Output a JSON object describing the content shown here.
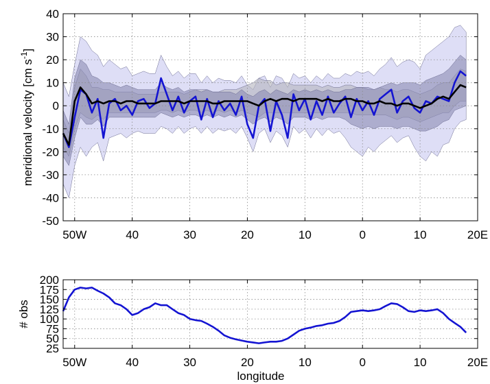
{
  "chart_data": [
    {
      "type": "line",
      "ylabel": "meridional velocity [cm s",
      "ylabel_sup": "-1",
      "ylabel_close": "]",
      "xlabel": "",
      "xlim": [
        -52,
        20
      ],
      "ylim": [
        -50,
        40
      ],
      "yticks": [
        -50,
        -40,
        -30,
        -20,
        -10,
        0,
        10,
        20,
        30,
        40
      ],
      "ytick_labels": [
        "-50",
        "-40",
        "-30",
        "-20",
        "-10",
        "0",
        "10",
        "20",
        "30",
        "40"
      ],
      "xticks": [
        -50,
        -40,
        -30,
        -20,
        -10,
        0,
        10,
        20
      ],
      "xtick_labels": [
        "50W",
        "40",
        "30",
        "20",
        "10",
        "0",
        "10",
        "20E"
      ],
      "grid": true,
      "colors": {
        "blue_line": "#1414d2",
        "black_line": "#000000",
        "outer_band": "#c8c8f0",
        "gray_band": "#b4b4be",
        "inner_band": "#8c8cb4"
      },
      "x": [
        -52,
        -51,
        -50,
        -49,
        -48,
        -47,
        -46,
        -45,
        -44,
        -43,
        -42,
        -41,
        -40,
        -39,
        -38,
        -37,
        -36,
        -35,
        -34,
        -33,
        -32,
        -31,
        -30,
        -29,
        -28,
        -27,
        -26,
        -25,
        -24,
        -23,
        -22,
        -21,
        -20,
        -19,
        -18,
        -17,
        -16,
        -15,
        -14,
        -13,
        -12,
        -11,
        -10,
        -9,
        -8,
        -7,
        -6,
        -5,
        -4,
        -3,
        -2,
        -1,
        0,
        1,
        2,
        3,
        4,
        5,
        6,
        7,
        8,
        9,
        10,
        11,
        12,
        13,
        14,
        15,
        16,
        17,
        18
      ],
      "series": [
        {
          "kind": "line",
          "color": "#1414d2",
          "values": [
            -12,
            -18,
            -5,
            7,
            5,
            -3,
            3,
            -14,
            1,
            3,
            -2,
            0,
            -4,
            2,
            3,
            -1,
            1,
            12,
            5,
            -2,
            4,
            -3,
            2,
            4,
            -6,
            3,
            -5,
            2,
            -2,
            1,
            -4,
            4,
            -8,
            -14,
            0,
            3,
            -11,
            2,
            -4,
            -14,
            5,
            -2,
            3,
            -6,
            2,
            -4,
            4,
            -3,
            1,
            4,
            -5,
            3,
            -2,
            2,
            -4,
            3,
            5,
            7,
            -3,
            2,
            4,
            -1,
            -3,
            2,
            1,
            4,
            3,
            2,
            10,
            15,
            13
          ]
        },
        {
          "kind": "line",
          "color": "#000000",
          "values": [
            -12,
            -17,
            2,
            8,
            5,
            1,
            2,
            1,
            2,
            2,
            1,
            2,
            2,
            1,
            1,
            1,
            1,
            2,
            2,
            2,
            2,
            1,
            2,
            2,
            2,
            2,
            1,
            1,
            2,
            2,
            2,
            2,
            2,
            1,
            0,
            2,
            3,
            2,
            3,
            3,
            2,
            3,
            3,
            3,
            3,
            2,
            3,
            2,
            2,
            3,
            3,
            2,
            2,
            1,
            1,
            2,
            1,
            1,
            0,
            1,
            1,
            0,
            -1,
            0,
            1,
            3,
            4,
            3,
            6,
            9,
            8
          ]
        },
        {
          "kind": "band",
          "color": "#c8c8f0",
          "lower": [
            -34,
            -40,
            -26,
            -18,
            -22,
            -18,
            -16,
            -24,
            -14,
            -13,
            -12,
            -14,
            -12,
            -11,
            -12,
            -12,
            -12,
            -9,
            -10,
            -12,
            -9,
            -12,
            -10,
            -9,
            -12,
            -9,
            -12,
            -10,
            -11,
            -10,
            -12,
            -9,
            -14,
            -20,
            -12,
            -10,
            -16,
            -11,
            -13,
            -18,
            -9,
            -12,
            -10,
            -14,
            -10,
            -13,
            -10,
            -12,
            -11,
            -14,
            -18,
            -20,
            -22,
            -18,
            -20,
            -17,
            -15,
            -13,
            -16,
            -14,
            -13,
            -18,
            -22,
            -24,
            -20,
            -22,
            -17,
            -16,
            -10,
            -7,
            -6
          ],
          "upper": [
            10,
            4,
            18,
            30,
            28,
            24,
            22,
            17,
            20,
            18,
            16,
            17,
            13,
            14,
            15,
            14,
            14,
            22,
            17,
            13,
            15,
            12,
            14,
            14,
            10,
            13,
            10,
            12,
            11,
            11,
            10,
            13,
            9,
            7,
            12,
            13,
            8,
            13,
            12,
            8,
            14,
            12,
            13,
            10,
            13,
            11,
            14,
            12,
            12,
            14,
            13,
            15,
            14,
            15,
            13,
            16,
            18,
            21,
            17,
            19,
            20,
            19,
            16,
            22,
            24,
            26,
            28,
            30,
            34,
            35,
            32
          ]
        },
        {
          "kind": "band",
          "color": "#b4b4be",
          "lower": [
            -18,
            -22,
            -10,
            -3,
            -5,
            -6,
            -4,
            -6,
            -3,
            -3,
            -3,
            -3,
            -3,
            -3,
            -3,
            -3,
            -3,
            -2,
            -2,
            -3,
            -2,
            -3,
            -2,
            -2,
            -3,
            -2,
            -3,
            -2,
            -3,
            -2,
            -3,
            -2,
            -3,
            -4,
            -5,
            -3,
            -3,
            -3,
            -3,
            -3,
            -3,
            -3,
            -3,
            -3,
            -3,
            -3,
            -3,
            -3,
            -3,
            -3,
            -3,
            -4,
            -4,
            -4,
            -4,
            -4,
            -4,
            -5,
            -6,
            -5,
            -5,
            -6,
            -7,
            -6,
            -5,
            -4,
            -3,
            -3,
            0,
            2,
            2
          ],
          "upper": [
            -6,
            -12,
            8,
            16,
            13,
            8,
            8,
            7,
            7,
            6,
            6,
            6,
            6,
            5,
            5,
            5,
            5,
            6,
            6,
            6,
            6,
            5,
            6,
            7,
            7,
            7,
            6,
            6,
            7,
            7,
            7,
            8,
            9,
            10,
            12,
            11,
            11,
            9,
            10,
            10,
            9,
            9,
            9,
            9,
            9,
            8,
            9,
            8,
            8,
            9,
            9,
            8,
            8,
            7,
            7,
            8,
            7,
            7,
            6,
            7,
            7,
            6,
            5,
            6,
            7,
            9,
            10,
            10,
            13,
            16,
            15
          ]
        },
        {
          "kind": "band",
          "color": "#8c8cb4",
          "lower": [
            -22,
            -26,
            -14,
            -5,
            -8,
            -8,
            -6,
            -9,
            -5,
            -5,
            -5,
            -5,
            -5,
            -5,
            -5,
            -5,
            -5,
            -3,
            -4,
            -5,
            -4,
            -5,
            -4,
            -4,
            -5,
            -4,
            -5,
            -4,
            -5,
            -4,
            -5,
            -4,
            -6,
            -8,
            -6,
            -5,
            -7,
            -5,
            -6,
            -8,
            -5,
            -5,
            -5,
            -6,
            -5,
            -6,
            -5,
            -5,
            -5,
            -6,
            -8,
            -9,
            -10,
            -9,
            -10,
            -9,
            -9,
            -9,
            -10,
            -9,
            -9,
            -10,
            -11,
            -11,
            -10,
            -9,
            -7,
            -6,
            -2,
            -1,
            0
          ],
          "upper": [
            -2,
            -8,
            12,
            20,
            18,
            13,
            12,
            10,
            10,
            9,
            8,
            9,
            8,
            7,
            7,
            7,
            7,
            10,
            8,
            7,
            8,
            6,
            7,
            7,
            6,
            7,
            6,
            6,
            6,
            6,
            5,
            7,
            5,
            4,
            6,
            7,
            5,
            7,
            6,
            5,
            7,
            6,
            7,
            6,
            7,
            6,
            7,
            6,
            6,
            7,
            7,
            8,
            8,
            8,
            7,
            8,
            9,
            10,
            9,
            10,
            10,
            10,
            9,
            11,
            12,
            13,
            14,
            16,
            19,
            22,
            20
          ]
        }
      ]
    },
    {
      "type": "line",
      "ylabel": "# obs",
      "xlabel": "longitude",
      "xlim": [
        -52,
        20
      ],
      "ylim": [
        25,
        200
      ],
      "yticks": [
        25,
        50,
        75,
        100,
        125,
        150,
        175,
        200
      ],
      "ytick_labels": [
        "25",
        "50",
        "75",
        "100",
        "125",
        "150",
        "175",
        "200"
      ],
      "xticks": [
        -50,
        -40,
        -30,
        -20,
        -10,
        0,
        10,
        20
      ],
      "xtick_labels": [
        "50W",
        "40",
        "30",
        "20",
        "10",
        "0",
        "10",
        "20E"
      ],
      "grid": true,
      "x": [
        -52,
        -51,
        -50,
        -49,
        -48,
        -47,
        -46,
        -45,
        -44,
        -43,
        -42,
        -41,
        -40,
        -39,
        -38,
        -37,
        -36,
        -35,
        -34,
        -33,
        -32,
        -31,
        -30,
        -29,
        -28,
        -27,
        -26,
        -25,
        -24,
        -23,
        -22,
        -21,
        -20,
        -19,
        -18,
        -17,
        -16,
        -15,
        -14,
        -13,
        -12,
        -11,
        -10,
        -9,
        -8,
        -7,
        -6,
        -5,
        -4,
        -3,
        -2,
        -1,
        0,
        1,
        2,
        3,
        4,
        5,
        6,
        7,
        8,
        9,
        10,
        11,
        12,
        13,
        14,
        15,
        16,
        17,
        18
      ],
      "series": [
        {
          "kind": "line",
          "color": "#1414d2",
          "values": [
            120,
            155,
            175,
            180,
            178,
            180,
            172,
            165,
            155,
            140,
            135,
            125,
            110,
            115,
            125,
            130,
            140,
            135,
            135,
            125,
            115,
            110,
            100,
            97,
            95,
            88,
            80,
            70,
            58,
            52,
            48,
            45,
            42,
            40,
            38,
            40,
            42,
            42,
            44,
            50,
            60,
            70,
            75,
            78,
            82,
            84,
            88,
            90,
            95,
            105,
            118,
            120,
            122,
            120,
            122,
            125,
            133,
            140,
            138,
            130,
            120,
            118,
            122,
            120,
            122,
            125,
            115,
            100,
            90,
            80,
            65
          ]
        }
      ]
    }
  ]
}
